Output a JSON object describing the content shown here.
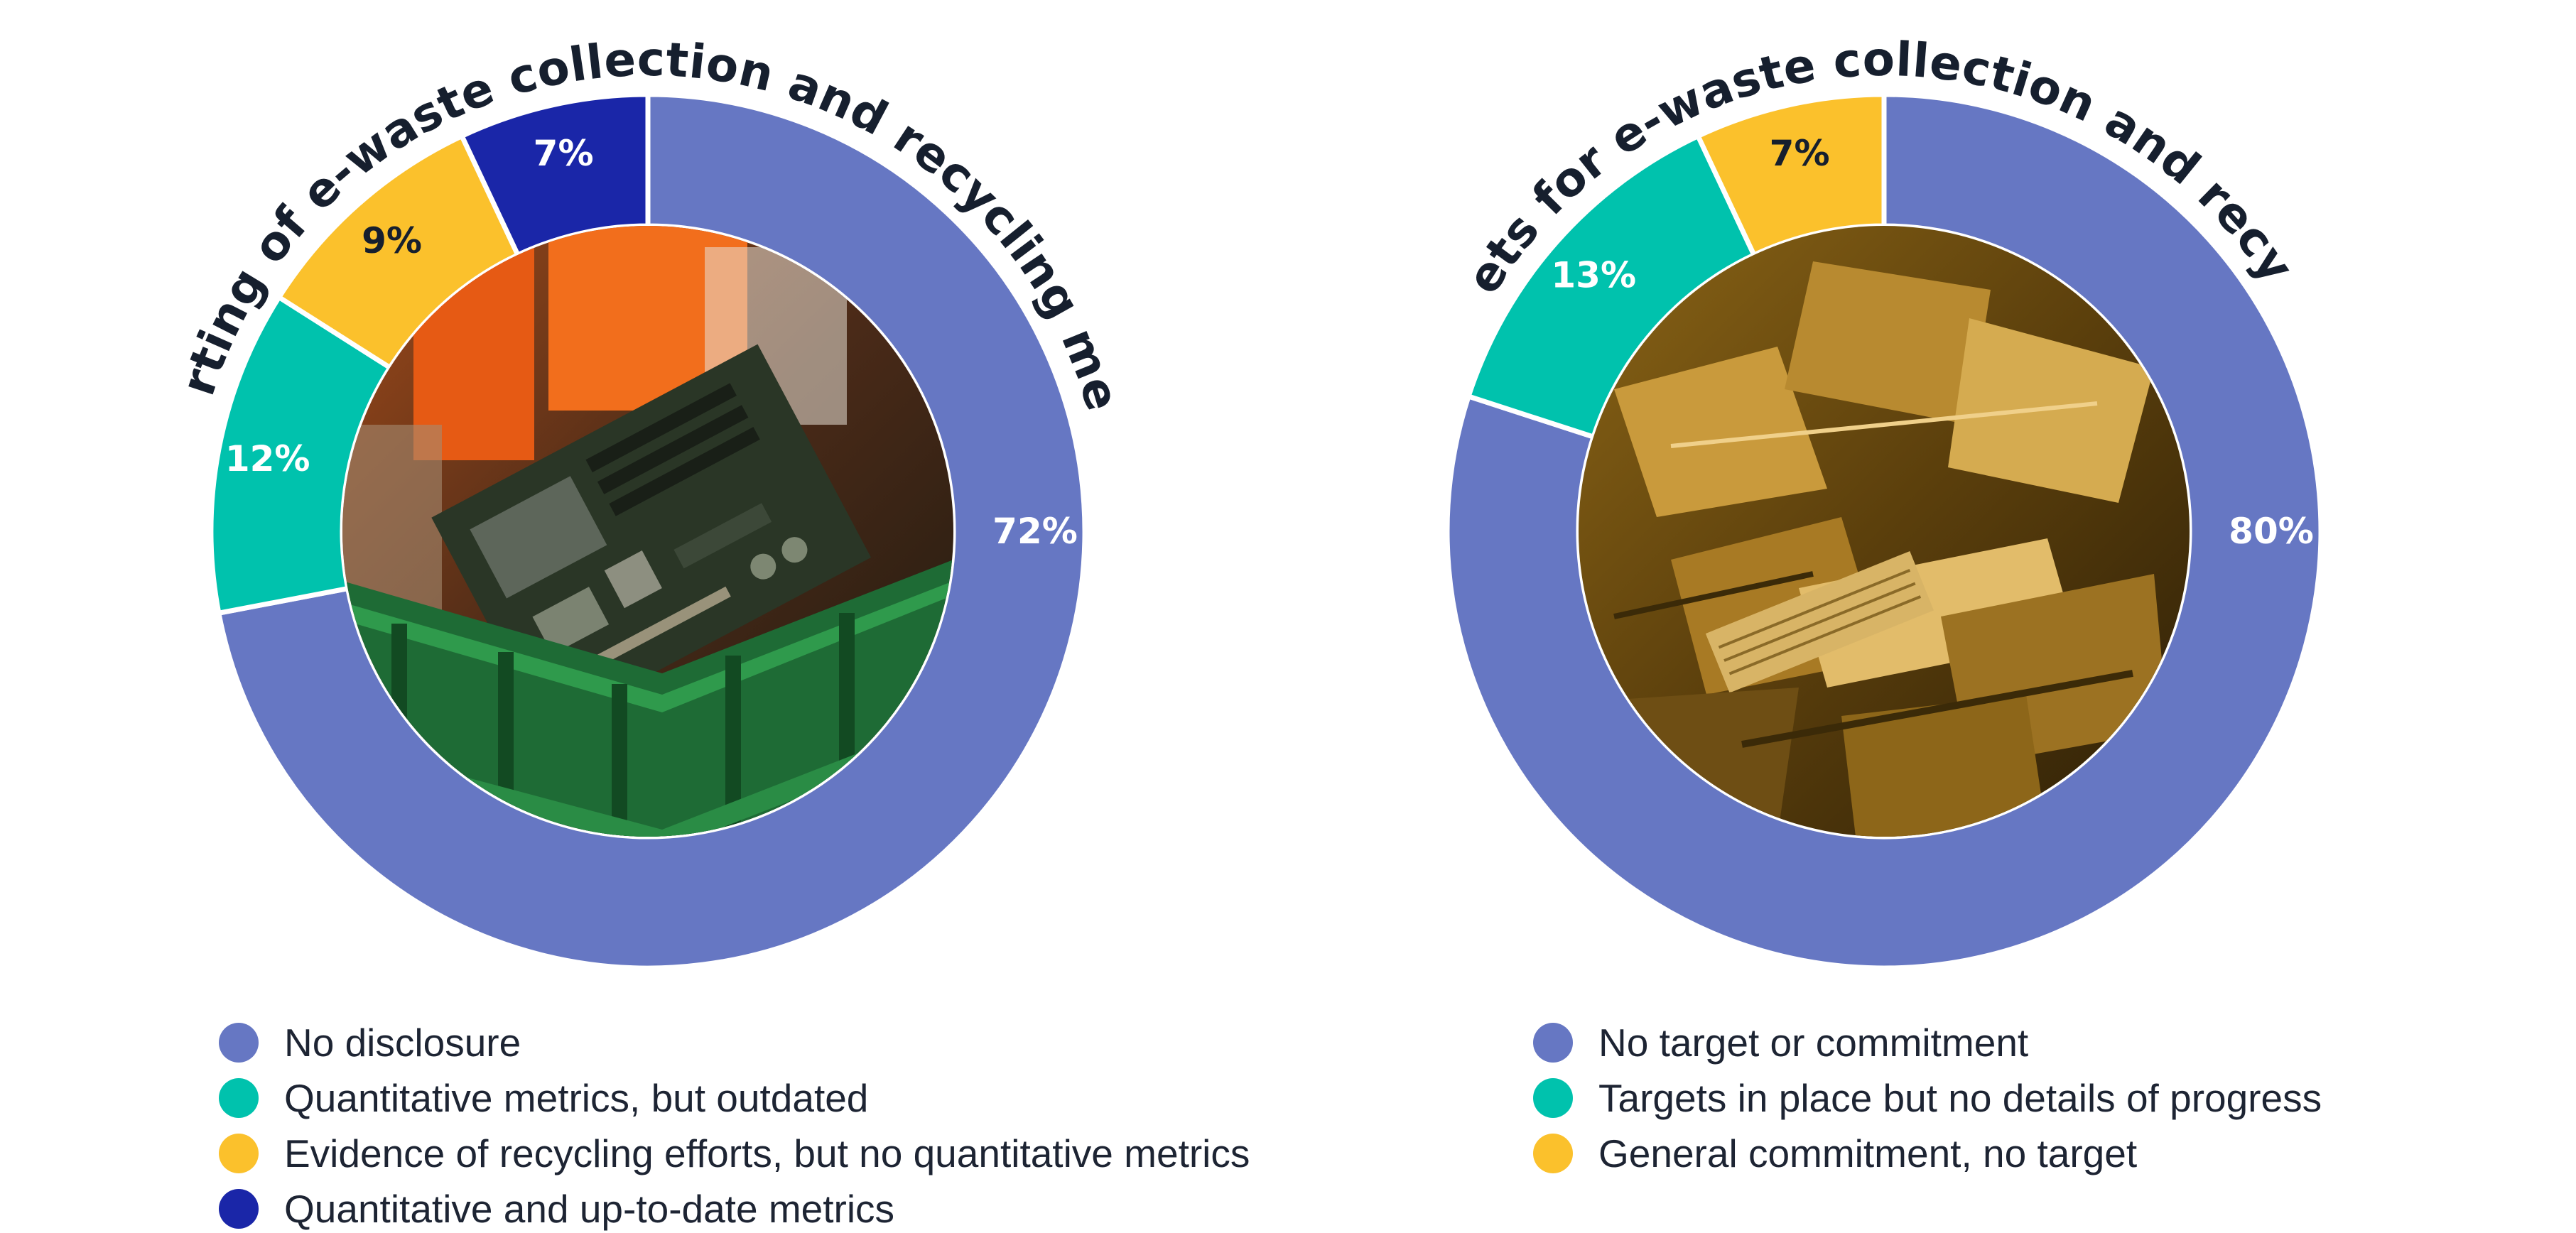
{
  "chart_data": [
    {
      "type": "pie",
      "variant": "donut",
      "title": "Reporting of e-waste collection and recycling metrics",
      "categories": [
        "No disclosure",
        "Quantitative metrics, but outdated",
        "Evidence of recycling efforts, but no quantitative metrics",
        "Quantitative and up-to-date metrics"
      ],
      "values": [
        72,
        12,
        9,
        7
      ],
      "labels": [
        "72%",
        "12%",
        "9%",
        "7%"
      ],
      "colors": [
        "#6677c3",
        "#00c2ad",
        "#fbc12c",
        "#1a26a8"
      ],
      "label_colors": [
        "#ffffff",
        "#ffffff",
        "#161f2e",
        "#ffffff"
      ],
      "legend": [
        "No disclosure",
        "Quantitative metrics, but outdated",
        "Evidence of recycling efforts, but no quantitative metrics",
        "Quantitative and up-to-date metrics"
      ],
      "center_image": "photo of circuit boards in a green plastic crate",
      "center_icon": "motherboard-photo"
    },
    {
      "type": "pie",
      "variant": "donut",
      "title": "Targets for e-waste collection and recycling",
      "categories": [
        "No target or commitment",
        "Targets in place but no details of progress",
        "General commitment, no target"
      ],
      "values": [
        80,
        13,
        7
      ],
      "labels": [
        "80%",
        "13%",
        "7%"
      ],
      "colors": [
        "#6677c3",
        "#00c2ad",
        "#fbc12c"
      ],
      "label_colors": [
        "#ffffff",
        "#ffffff",
        "#161f2e"
      ],
      "legend": [
        "No target or commitment",
        "Targets in place but no details of progress",
        "General commitment, no target"
      ],
      "center_image": "photo of a pile of discarded computer parts",
      "center_icon": "ewaste-pile-photo"
    }
  ]
}
